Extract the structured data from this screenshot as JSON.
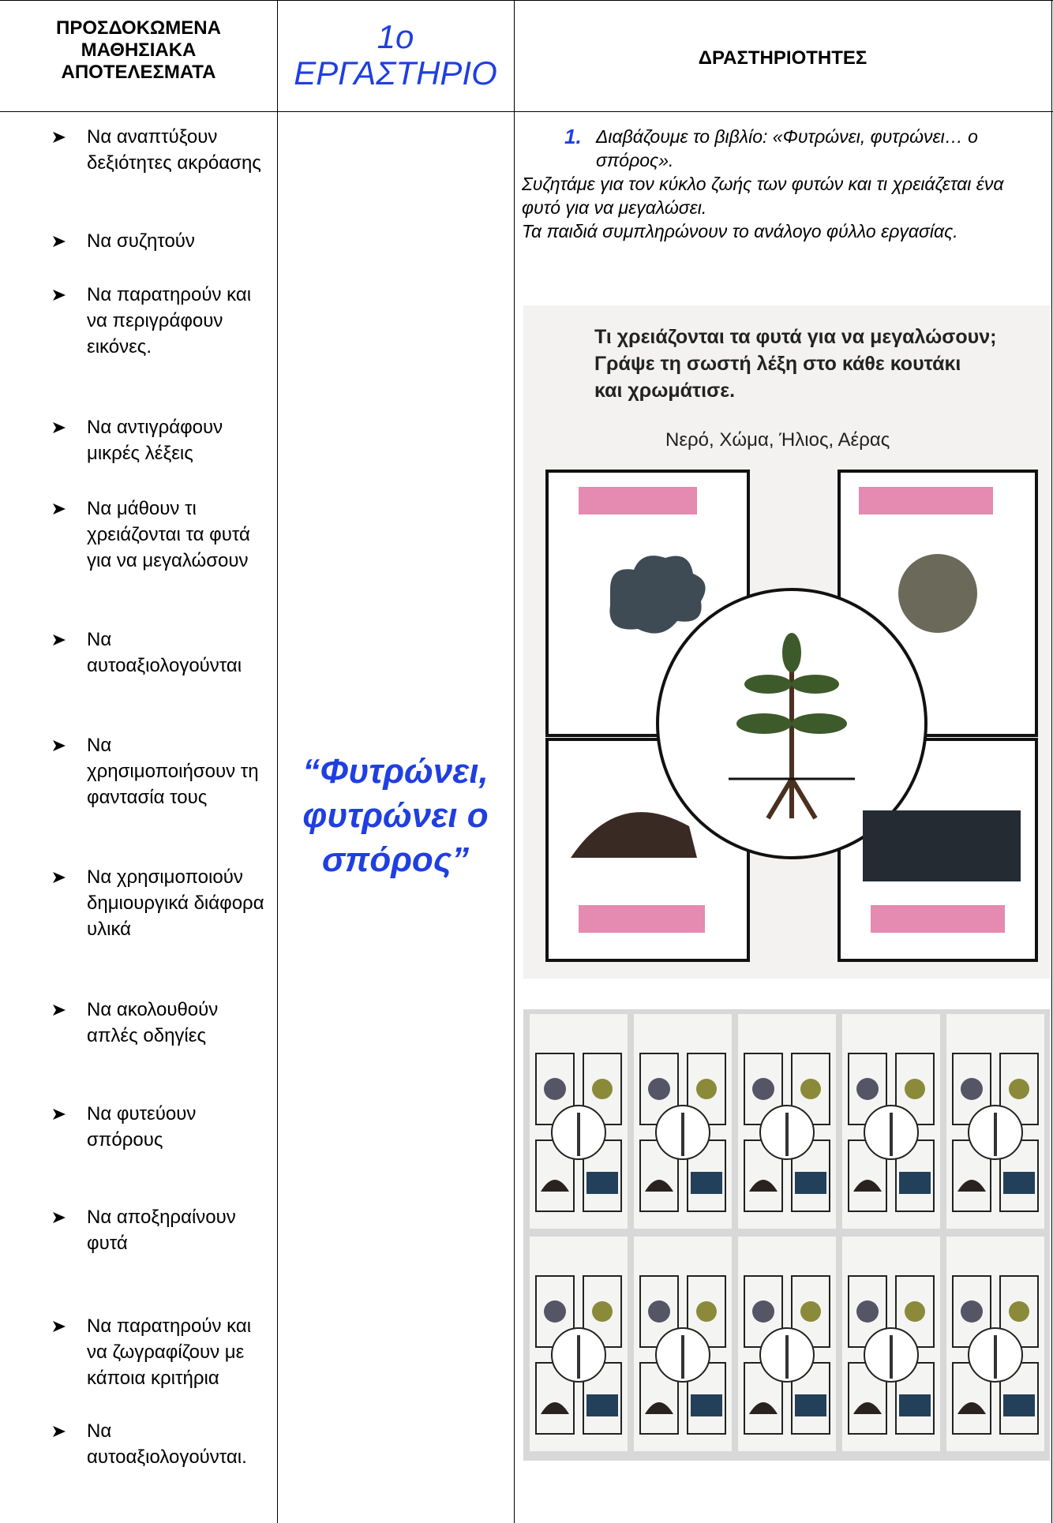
{
  "header": {
    "col1": [
      "ΠΡΟΣΔΟΚΩΜΕΝΑ",
      "ΜΑΘΗΣΙΑΚΑ",
      "ΑΠΟΤΕΛΕΣΜΑΤΑ"
    ],
    "col2_number": "1ο",
    "col2_title": "ΕΡΓΑΣΤΗΡΙΟ",
    "col3": "ΔΡΑΣΤΗΡΙΟΤΗΤΕΣ"
  },
  "outcomes": [
    "Να αναπτύξουν δεξιότητες ακρόασης",
    "Να συζητούν",
    "Να παρατηρούν και να περιγράφουν εικόνες.",
    "Να αντιγράφουν μικρές λέξεις",
    "Να μάθουν τι χρειάζονται τα φυτά για να μεγαλώσουν",
    "Να αυτοαξιολογούνται",
    "Να χρησιμοποιήσουν τη φαντασία τους",
    "Να χρησιμοποιούν δημιουργικά διάφορα υλικά",
    "Να ακολουθούν απλές οδηγίες",
    "Να φυτεύουν σπόρους",
    "Να αποξηραίνουν φυτά",
    "Να παρατηρούν και να ζωγραφίζουν με κάποια κριτήρια",
    "Να αυτοαξιολογούνται."
  ],
  "workshop_title": "“Φυτρώνει, φυτρώνει ο σπόρος”",
  "activities": {
    "step_number": "1.",
    "step_text": "Διαβάζουμε το βιβλίο: «Φυτρώνει, φυτρώνει… ο σπόρος».",
    "description": [
      "Συζητάμε για τον κύκλο ζωής των φυτών και τι χρειάζεται ένα φυτό για να μεγαλώσει.",
      "Τα παιδιά συμπληρώνουν το ανάλογο φύλλο εργασίας."
    ]
  },
  "worksheet": {
    "question": [
      "Τι χρειάζονται τα φυτά για να μεγαλώσουν;",
      "Γράψε τη σωστή λέξη στο κάθε κουτάκι",
      "και χρωμάτισε."
    ],
    "words": "Νερό, Χώμα, Ήλιος, Αέρας"
  }
}
